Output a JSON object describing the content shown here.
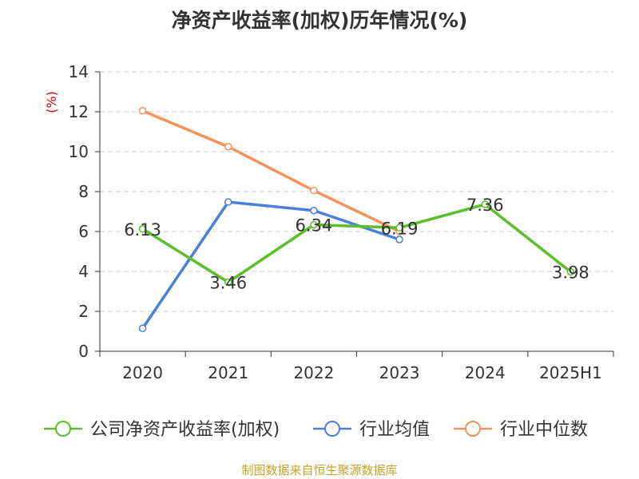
{
  "title": "净资产收益率(加权)历年情况(%)",
  "source": "制图数据来自恒生聚源数据库",
  "chart_data": {
    "type": "line",
    "title": "净资产收益率(加权)历年情况(%)",
    "ylabel": "(%)",
    "xlabel": "",
    "categories": [
      "2020",
      "2021",
      "2022",
      "2023",
      "2024",
      "2025H1"
    ],
    "ylim": [
      0,
      14
    ],
    "yticks": [
      0,
      2,
      4,
      6,
      8,
      10,
      12,
      14
    ],
    "grid": true,
    "legend_position": "bottom",
    "series": [
      {
        "name": "公司净资产收益率(加权)",
        "color": "#5cbf2a",
        "values": [
          6.13,
          3.46,
          6.34,
          6.19,
          7.36,
          3.98
        ],
        "labels": [
          "6.13",
          "3.46",
          "6.34",
          "6.19",
          "7.36",
          "3.98"
        ]
      },
      {
        "name": "行业均值",
        "color": "#4a7fdc",
        "values": [
          1.15,
          7.48,
          7.05,
          5.6,
          null,
          null
        ]
      },
      {
        "name": "行业中位数",
        "color": "#f5935a",
        "values": [
          12.05,
          10.25,
          8.05,
          6.0,
          null,
          null
        ]
      }
    ]
  }
}
